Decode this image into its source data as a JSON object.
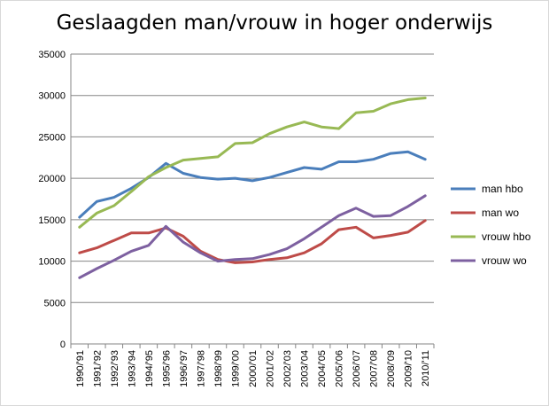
{
  "chart_data": {
    "type": "line",
    "title": "Geslaagden man/vrouw in hoger onderwijs",
    "xlabel": "",
    "ylabel": "",
    "ylim": [
      0,
      35000
    ],
    "yticks": [
      0,
      5000,
      10000,
      15000,
      20000,
      25000,
      30000,
      35000
    ],
    "grid": true,
    "legend_position": "right",
    "categories": [
      "1990/'91",
      "1991/'92",
      "1992/'93",
      "1993/'94",
      "1994/'95",
      "1995/'96",
      "1996/'97",
      "1997/'98",
      "1998/'99",
      "1999/'00",
      "2000/'01",
      "2001/'02",
      "2002/'03",
      "2003/'04",
      "2004/'05",
      "2005/'06",
      "2006/'07",
      "2007/'08",
      "2008/'09",
      "2009/'10",
      "2010/'11"
    ],
    "series": [
      {
        "name": "man hbo",
        "color": "#4A7EBB",
        "values": [
          15300,
          17200,
          17700,
          18800,
          20100,
          21800,
          20600,
          20100,
          19900,
          20000,
          19700,
          20100,
          20700,
          21300,
          21100,
          22000,
          22000,
          22300,
          23000,
          23200,
          22300
        ]
      },
      {
        "name": "man wo",
        "color": "#BE4B48",
        "values": [
          11000,
          11600,
          12500,
          13400,
          13400,
          14000,
          13000,
          11200,
          10200,
          9800,
          9900,
          10200,
          10400,
          11000,
          12100,
          13800,
          14100,
          12800,
          13100,
          13500,
          14900
        ]
      },
      {
        "name": "vrouw hbo",
        "color": "#98B954",
        "values": [
          14100,
          15800,
          16700,
          18400,
          20200,
          21300,
          22200,
          22400,
          22600,
          24200,
          24300,
          25400,
          26200,
          26800,
          26200,
          26000,
          27900,
          28100,
          29000,
          29500,
          29700
        ]
      },
      {
        "name": "vrouw wo",
        "color": "#7D60A0",
        "values": [
          8000,
          9100,
          10100,
          11200,
          11900,
          14200,
          12300,
          11000,
          10000,
          10200,
          10300,
          10800,
          11500,
          12700,
          14100,
          15500,
          16400,
          15400,
          15500,
          16600,
          17900
        ]
      }
    ]
  }
}
